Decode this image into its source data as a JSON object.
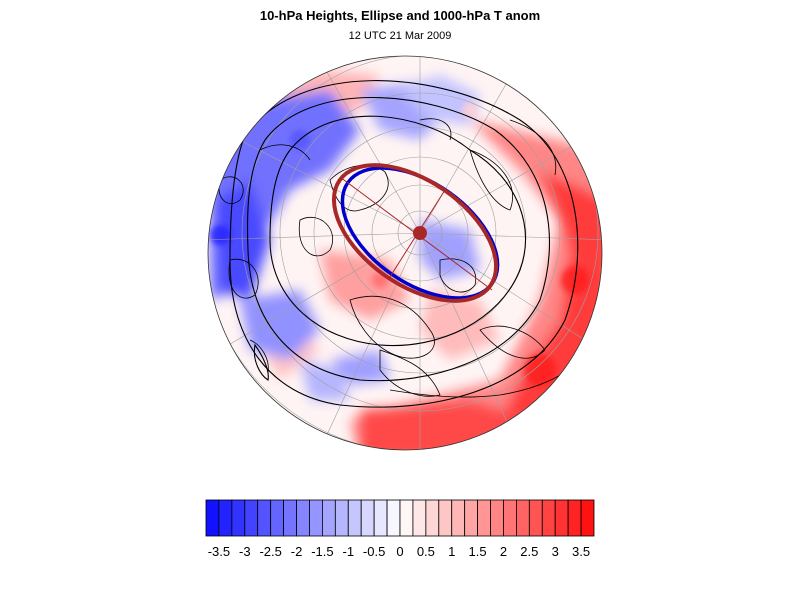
{
  "title": "10-hPa Heights, Ellipse and 1000-hPa T anom",
  "subtitle": "12 UTC 21 Mar 2009",
  "colors": {
    "negative": "#1a1aff",
    "positive": "#ff2020",
    "neutral": "#ffffff",
    "observed_ellipse": "#0000cc",
    "fitted_ellipse": "#a82828",
    "height_contours": "#000000",
    "coastlines": "#000000",
    "gridlines": "#a0a0a0"
  },
  "colorbar": {
    "labels": [
      "-3.5",
      "-3",
      "-2.5",
      "-2",
      "-1.5",
      "-1",
      "-0.5",
      "0",
      "0.5",
      "1",
      "1.5",
      "2",
      "2.5",
      "3",
      "3.5"
    ],
    "levels": [
      -3.75,
      -3.5,
      -3.25,
      -3,
      -2.75,
      -2.5,
      -2.25,
      -2,
      -1.75,
      -1.5,
      -1.25,
      -1,
      -0.75,
      -0.5,
      -0.25,
      0,
      0.25,
      0.5,
      0.75,
      1,
      1.25,
      1.5,
      1.75,
      2,
      2.25,
      2.5,
      2.75,
      3,
      3.25,
      3.5,
      3.75
    ]
  },
  "map": {
    "projection": "north-polar stereographic",
    "features": [
      "temperature-anomaly-shading",
      "10-hPa-height-contours",
      "coastlines",
      "lat-lon-gridlines",
      "observed-vortex-ellipse",
      "fitted-ellipse",
      "vortex-centroid",
      "ellipse-axes"
    ]
  }
}
